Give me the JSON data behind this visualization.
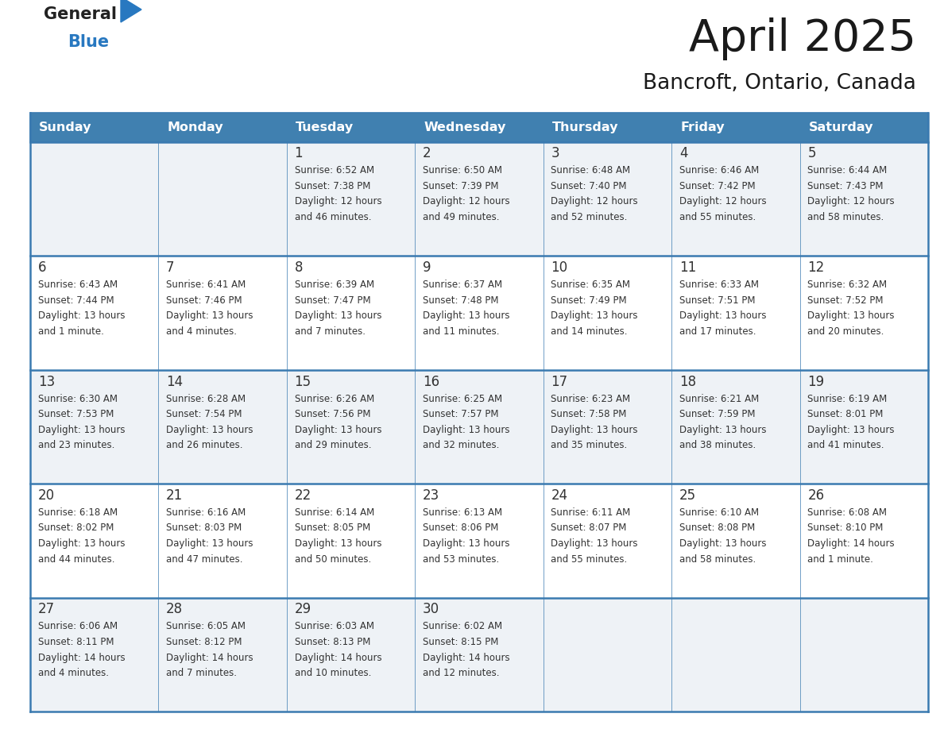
{
  "title": "April 2025",
  "subtitle": "Bancroft, Ontario, Canada",
  "header_color": "#4080B0",
  "header_text_color": "#FFFFFF",
  "day_names": [
    "Sunday",
    "Monday",
    "Tuesday",
    "Wednesday",
    "Thursday",
    "Friday",
    "Saturday"
  ],
  "cell_bg_even": "#EEF2F6",
  "cell_bg_odd": "#FFFFFF",
  "border_color": "#3A7AB0",
  "row_border_color": "#3A7AB0",
  "text_color": "#333333",
  "day_num_color": "#333333",
  "logo_black": "#222222",
  "logo_blue": "#2878C0",
  "title_color": "#1a1a1a",
  "calendar_data": [
    [
      {
        "day": null,
        "info": ""
      },
      {
        "day": null,
        "info": ""
      },
      {
        "day": 1,
        "info": "Sunrise: 6:52 AM\nSunset: 7:38 PM\nDaylight: 12 hours\nand 46 minutes."
      },
      {
        "day": 2,
        "info": "Sunrise: 6:50 AM\nSunset: 7:39 PM\nDaylight: 12 hours\nand 49 minutes."
      },
      {
        "day": 3,
        "info": "Sunrise: 6:48 AM\nSunset: 7:40 PM\nDaylight: 12 hours\nand 52 minutes."
      },
      {
        "day": 4,
        "info": "Sunrise: 6:46 AM\nSunset: 7:42 PM\nDaylight: 12 hours\nand 55 minutes."
      },
      {
        "day": 5,
        "info": "Sunrise: 6:44 AM\nSunset: 7:43 PM\nDaylight: 12 hours\nand 58 minutes."
      }
    ],
    [
      {
        "day": 6,
        "info": "Sunrise: 6:43 AM\nSunset: 7:44 PM\nDaylight: 13 hours\nand 1 minute."
      },
      {
        "day": 7,
        "info": "Sunrise: 6:41 AM\nSunset: 7:46 PM\nDaylight: 13 hours\nand 4 minutes."
      },
      {
        "day": 8,
        "info": "Sunrise: 6:39 AM\nSunset: 7:47 PM\nDaylight: 13 hours\nand 7 minutes."
      },
      {
        "day": 9,
        "info": "Sunrise: 6:37 AM\nSunset: 7:48 PM\nDaylight: 13 hours\nand 11 minutes."
      },
      {
        "day": 10,
        "info": "Sunrise: 6:35 AM\nSunset: 7:49 PM\nDaylight: 13 hours\nand 14 minutes."
      },
      {
        "day": 11,
        "info": "Sunrise: 6:33 AM\nSunset: 7:51 PM\nDaylight: 13 hours\nand 17 minutes."
      },
      {
        "day": 12,
        "info": "Sunrise: 6:32 AM\nSunset: 7:52 PM\nDaylight: 13 hours\nand 20 minutes."
      }
    ],
    [
      {
        "day": 13,
        "info": "Sunrise: 6:30 AM\nSunset: 7:53 PM\nDaylight: 13 hours\nand 23 minutes."
      },
      {
        "day": 14,
        "info": "Sunrise: 6:28 AM\nSunset: 7:54 PM\nDaylight: 13 hours\nand 26 minutes."
      },
      {
        "day": 15,
        "info": "Sunrise: 6:26 AM\nSunset: 7:56 PM\nDaylight: 13 hours\nand 29 minutes."
      },
      {
        "day": 16,
        "info": "Sunrise: 6:25 AM\nSunset: 7:57 PM\nDaylight: 13 hours\nand 32 minutes."
      },
      {
        "day": 17,
        "info": "Sunrise: 6:23 AM\nSunset: 7:58 PM\nDaylight: 13 hours\nand 35 minutes."
      },
      {
        "day": 18,
        "info": "Sunrise: 6:21 AM\nSunset: 7:59 PM\nDaylight: 13 hours\nand 38 minutes."
      },
      {
        "day": 19,
        "info": "Sunrise: 6:19 AM\nSunset: 8:01 PM\nDaylight: 13 hours\nand 41 minutes."
      }
    ],
    [
      {
        "day": 20,
        "info": "Sunrise: 6:18 AM\nSunset: 8:02 PM\nDaylight: 13 hours\nand 44 minutes."
      },
      {
        "day": 21,
        "info": "Sunrise: 6:16 AM\nSunset: 8:03 PM\nDaylight: 13 hours\nand 47 minutes."
      },
      {
        "day": 22,
        "info": "Sunrise: 6:14 AM\nSunset: 8:05 PM\nDaylight: 13 hours\nand 50 minutes."
      },
      {
        "day": 23,
        "info": "Sunrise: 6:13 AM\nSunset: 8:06 PM\nDaylight: 13 hours\nand 53 minutes."
      },
      {
        "day": 24,
        "info": "Sunrise: 6:11 AM\nSunset: 8:07 PM\nDaylight: 13 hours\nand 55 minutes."
      },
      {
        "day": 25,
        "info": "Sunrise: 6:10 AM\nSunset: 8:08 PM\nDaylight: 13 hours\nand 58 minutes."
      },
      {
        "day": 26,
        "info": "Sunrise: 6:08 AM\nSunset: 8:10 PM\nDaylight: 14 hours\nand 1 minute."
      }
    ],
    [
      {
        "day": 27,
        "info": "Sunrise: 6:06 AM\nSunset: 8:11 PM\nDaylight: 14 hours\nand 4 minutes."
      },
      {
        "day": 28,
        "info": "Sunrise: 6:05 AM\nSunset: 8:12 PM\nDaylight: 14 hours\nand 7 minutes."
      },
      {
        "day": 29,
        "info": "Sunrise: 6:03 AM\nSunset: 8:13 PM\nDaylight: 14 hours\nand 10 minutes."
      },
      {
        "day": 30,
        "info": "Sunrise: 6:02 AM\nSunset: 8:15 PM\nDaylight: 14 hours\nand 12 minutes."
      },
      {
        "day": null,
        "info": ""
      },
      {
        "day": null,
        "info": ""
      },
      {
        "day": null,
        "info": ""
      }
    ]
  ],
  "fig_width": 11.88,
  "fig_height": 9.18,
  "dpi": 100
}
